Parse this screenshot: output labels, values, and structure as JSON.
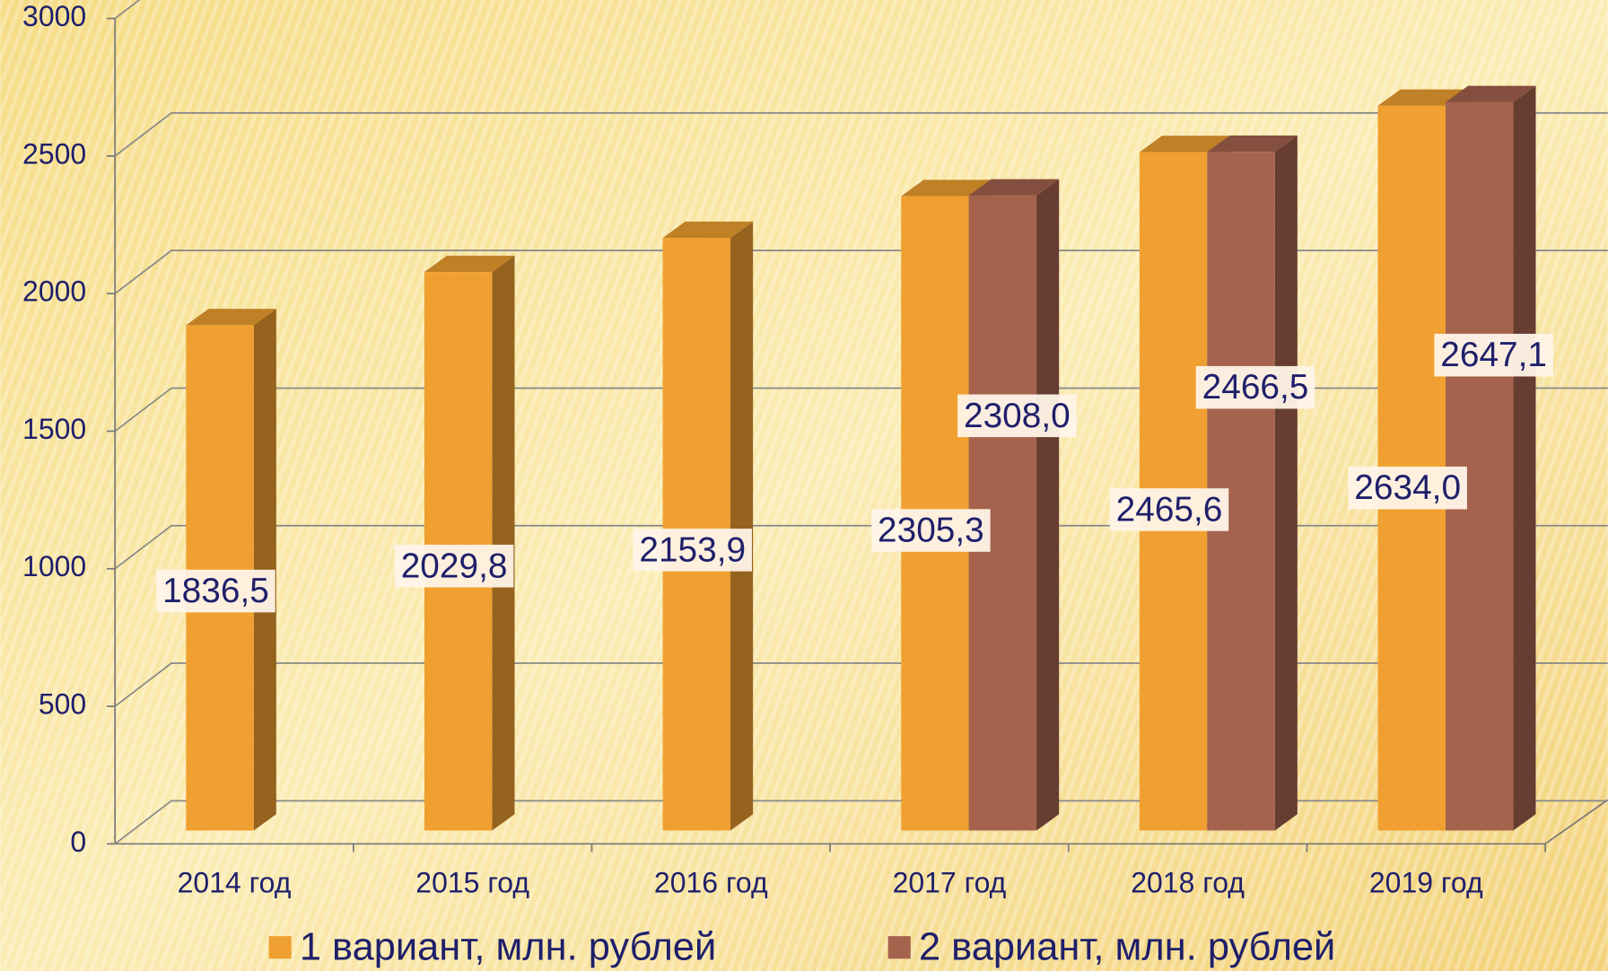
{
  "chart_data": {
    "type": "bar3d",
    "categories": [
      "2014 год",
      "2015 год",
      "2016 год",
      "2017 год",
      "2018 год",
      "2019 год"
    ],
    "series": [
      {
        "name": "1 вариант, млн. рублей",
        "color": "#f0a030",
        "values": [
          1836.5,
          2029.8,
          2153.9,
          2305.3,
          2465.6,
          2634.0
        ],
        "value_labels": [
          "1836,5",
          "2029,8",
          "2153,9",
          "2305,3",
          "2465,6",
          "2634,0"
        ]
      },
      {
        "name": "2 вариант, млн. рублей",
        "color": "#a5634e",
        "values": [
          null,
          null,
          null,
          2308.0,
          2466.5,
          2647.1
        ],
        "value_labels": [
          null,
          null,
          null,
          "2308,0",
          "2466,5",
          "2647,1"
        ]
      }
    ],
    "ylim": [
      0,
      3000
    ],
    "yticks": [
      0,
      500,
      1000,
      1500,
      2000,
      2500,
      3000
    ],
    "grid": true,
    "legend": "bottom"
  }
}
